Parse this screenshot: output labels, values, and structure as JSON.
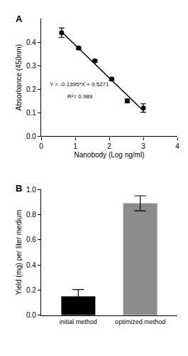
{
  "chart_data": [
    {
      "type": "scatter",
      "title": "A",
      "x_label": "Nanobody (Log ng/ml)",
      "y_label": "Absorbance (450nm)",
      "annotations": [
        "Y = -0.1395*X + 0.5271",
        "R²= 0.989"
      ],
      "series": [
        {
          "type": "scatter",
          "marker": "circle",
          "color": "#000000",
          "x": [
            0.6,
            1.1,
            1.58,
            2.07,
            2.53,
            3.0
          ],
          "values": [
            0.44,
            0.375,
            0.32,
            0.243,
            0.15,
            0.12
          ],
          "errors": [
            0.02,
            0.005,
            0.005,
            0.005,
            0.008,
            0.018
          ]
        },
        {
          "type": "line",
          "line_style": "solid",
          "color": "#000000",
          "x": [
            0.6,
            3.0
          ],
          "values": [
            0.4434,
            0.1086
          ]
        }
      ],
      "xlim": [
        0,
        4
      ],
      "xticks": [
        0,
        1,
        2,
        3,
        4
      ],
      "ylim": [
        0,
        0.5
      ],
      "yticks": [
        {
          "value": 0,
          "label": "0.0"
        },
        0.1,
        0.2,
        0.3,
        0.4
      ],
      "grid": false
    },
    {
      "type": "bar",
      "title": "B",
      "y_label": "Yield (mg) per liter medium",
      "categories": [
        "initial method",
        "optimized method"
      ],
      "values": [
        0.15,
        0.89
      ],
      "errors": [
        0.055,
        0.06
      ],
      "colors": [
        "#000000",
        "#8c8c8c"
      ],
      "ylim": [
        0,
        1.0
      ],
      "yticks": [
        {
          "value": 0,
          "label": "0.0"
        },
        {
          "value": 0.2,
          "label": "0.2"
        },
        {
          "value": 0.4,
          "label": "0.4"
        },
        {
          "value": 0.6,
          "label": "0.6"
        },
        {
          "value": 0.8,
          "label": "0.8"
        },
        {
          "value": 1.0,
          "label": "1.0"
        }
      ],
      "grid": false
    }
  ]
}
